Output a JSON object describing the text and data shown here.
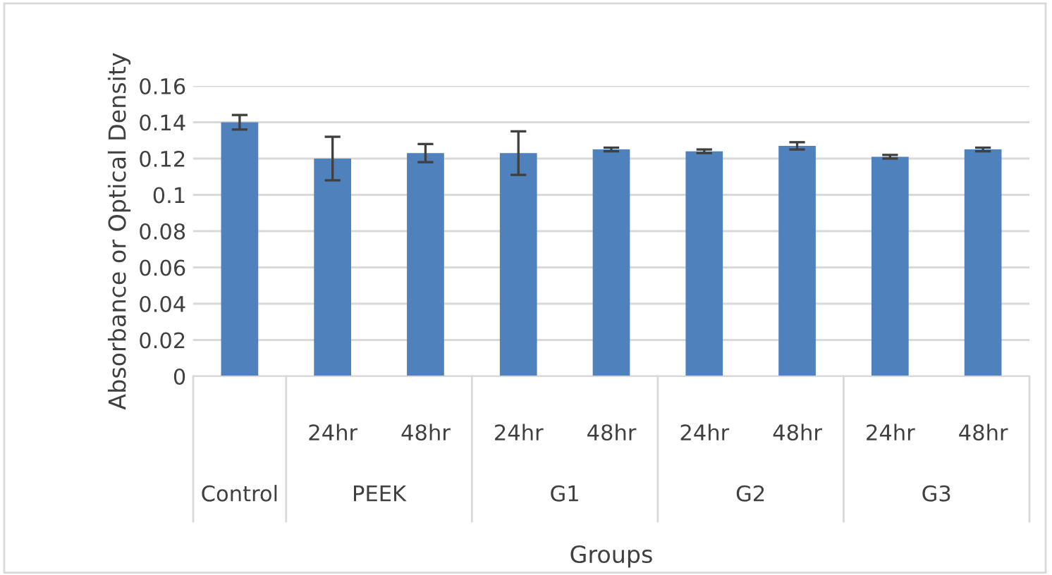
{
  "chart_data": {
    "type": "bar",
    "xlabel": "Groups",
    "ylabel": "Absorbance or Optical Density",
    "categories": [
      null,
      "24hr",
      "48hr",
      "24hr",
      "48hr",
      "24hr",
      "48hr",
      "24hr",
      "48hr"
    ],
    "annotations": [
      "Control",
      "PEEK",
      "G1",
      "G2",
      "G3"
    ],
    "values": [
      0.14,
      0.12,
      0.123,
      0.123,
      0.125,
      0.124,
      0.127,
      0.121,
      0.125
    ],
    "errors": [
      0.004,
      0.012,
      0.005,
      0.012,
      0.001,
      0.001,
      0.002,
      0.001,
      0.001
    ],
    "color": "#4f81bd",
    "ylim": [
      0,
      0.16
    ],
    "yticks": [
      0,
      0.02,
      0.04,
      0.06,
      0.08,
      0.1,
      0.12,
      0.14,
      0.16
    ],
    "grid": "y"
  }
}
